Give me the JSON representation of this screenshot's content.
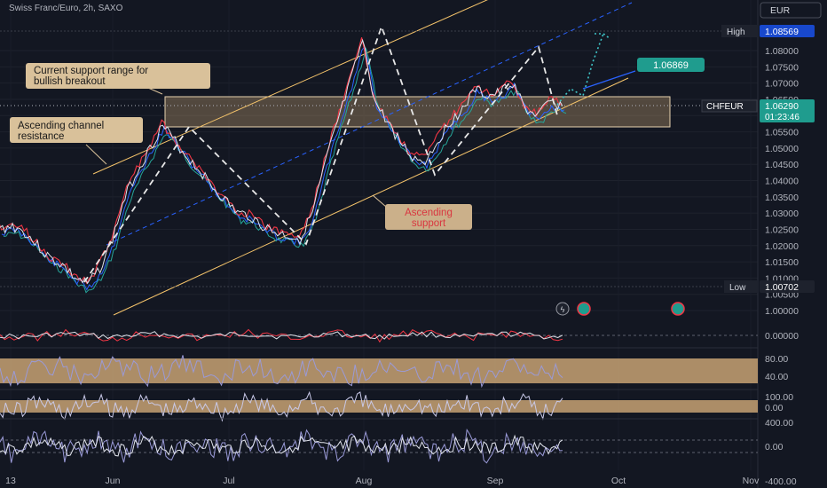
{
  "header": {
    "symbol_title": "Swiss Franc/Euro, 2h, SAXO",
    "currency": "EUR"
  },
  "price_axis": {
    "high_label": "High",
    "high_value": "1.08569",
    "low_label": "Low",
    "low_value": "1.00702",
    "last_symbol": "CHFEUR",
    "last_value": "1.06290",
    "countdown": "01:23:46",
    "target_value": "1.06869"
  },
  "annotations": {
    "support_range": "Current support range for bullish breakout",
    "channel_resistance": "Ascending channel resistance",
    "ascending_support": "Ascending support"
  },
  "colors": {
    "background": "#131722",
    "price_line": "#e0e3eb",
    "ma_red": "#f23645",
    "ma_teal": "#26a69a",
    "ma_blue": "#2962ff",
    "channel": "#f5c46b",
    "zone": "#c8a273",
    "target_box": "#1f9c8e",
    "target_line": "#2962ff",
    "projection": "#3fc6c9",
    "axis_text": "#b2b5be"
  },
  "chart_data": {
    "type": "line",
    "title": "Swiss Franc/Euro, 2h, SAXO",
    "xlabel": "",
    "ylabel": "",
    "y_ticks": [
      1.08,
      1.075,
      1.07,
      1.065,
      1.06,
      1.055,
      1.05,
      1.045,
      1.04,
      1.035,
      1.03,
      1.025,
      1.02,
      1.015,
      1.01,
      1.005,
      1.0
    ],
    "ylim": [
      0.998,
      1.088
    ],
    "x_ticks": [
      "13",
      "Jun",
      "Jul",
      "Aug",
      "Sep",
      "Oct",
      "Nov"
    ],
    "high": 1.08569,
    "low": 1.00702,
    "last": 1.0629,
    "target": 1.06869,
    "support_zone": [
      1.0555,
      1.0655
    ],
    "series": [
      {
        "values": [
          1.025,
          1.026,
          1.024,
          1.02,
          1.016,
          1.014,
          1.01,
          1.008,
          1.013,
          1.022,
          1.035,
          1.043,
          1.05,
          1.057,
          1.052,
          1.047,
          1.043,
          1.038,
          1.034,
          1.03,
          1.029,
          1.026,
          1.024,
          1.023,
          1.022,
          1.03,
          1.045,
          1.058,
          1.07,
          1.083,
          1.064,
          1.058,
          1.052,
          1.047,
          1.046,
          1.052,
          1.058,
          1.062,
          1.068,
          1.066,
          1.067,
          1.07,
          1.062,
          1.06,
          1.064,
          1.0629
        ]
      }
    ],
    "oscillators": [
      {
        "ticks": [
          "0.00000"
        ]
      },
      {
        "ticks": [
          "80.00",
          "40.00"
        ]
      },
      {
        "ticks": [
          "100.00",
          "0.00"
        ]
      },
      {
        "ticks": [
          "400.00",
          "0.00",
          "-400.00"
        ]
      }
    ]
  }
}
